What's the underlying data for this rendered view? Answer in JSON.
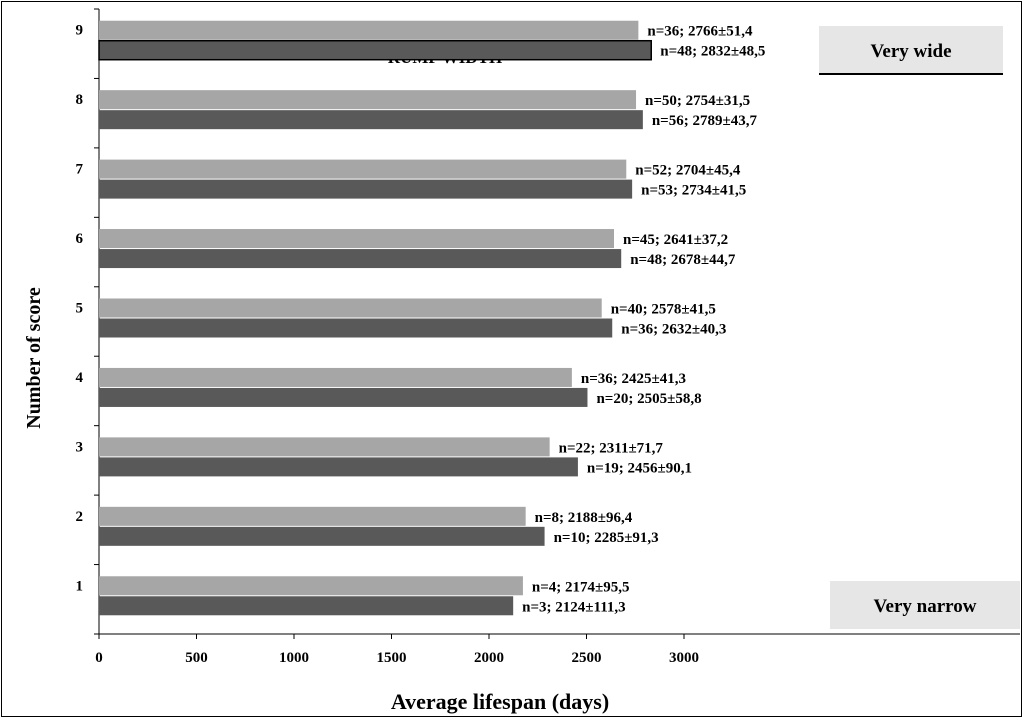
{
  "chart_data": {
    "type": "bar",
    "orientation": "horizontal",
    "title": "RUMP WIDTH",
    "xlabel": "Average lifespan (days)",
    "ylabel": "Number of score",
    "xlim": [
      0,
      3000
    ],
    "xticks": [
      0,
      500,
      1000,
      1500,
      2000,
      2500,
      3000
    ],
    "categories": [
      "1",
      "2",
      "3",
      "4",
      "5",
      "6",
      "7",
      "8",
      "9"
    ],
    "grid": false,
    "legend": "none",
    "annotations": {
      "top": "Very wide",
      "bottom": "Very narrow"
    },
    "series": [
      {
        "color": "#a6a6a6",
        "values": [
          2174,
          2188,
          2311,
          2425,
          2578,
          2641,
          2704,
          2754,
          2766
        ],
        "labels": [
          "n=4; 2174±95,5",
          "n=8; 2188±96,4",
          "n=22; 2311±71,7",
          "n=36; 2425±41,3",
          "n=40; 2578±41,5",
          "n=45; 2641±37,2",
          "n=52; 2704±45,4",
          "n=50; 2754±31,5",
          "n=36; 2766±51,4"
        ]
      },
      {
        "color": "#595959",
        "values": [
          2124,
          2285,
          2456,
          2505,
          2632,
          2678,
          2734,
          2789,
          2832
        ],
        "labels": [
          "n=3; 2124±111,3",
          "n=10; 2285±91,3",
          "n=19; 2456±90,1",
          "n=20; 2505±58,8",
          "n=36; 2632±40,3",
          "n=48; 2678±44,7",
          "n=53; 2734±41,5",
          "n=56; 2789±43,7",
          "n=48; 2832±48,5"
        ]
      }
    ]
  }
}
